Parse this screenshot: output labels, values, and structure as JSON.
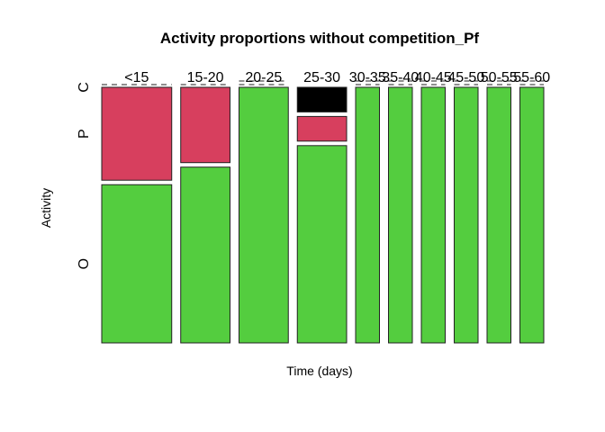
{
  "chart_data": {
    "type": "mosaic",
    "title": "Activity proportions without competition_Pf",
    "xlabel": "Time (days)",
    "ylabel": "Activity",
    "x_categories": [
      "<15",
      "15-20",
      "20-25",
      "25-30",
      "30-35",
      "35-40",
      "40-45",
      "45-50",
      "50-55",
      "55-60"
    ],
    "y_categories": [
      "O",
      "P",
      "C"
    ],
    "column_widths": [
      0.22,
      0.155,
      0.155,
      0.155,
      0.075,
      0.075,
      0.075,
      0.075,
      0.075,
      0.075
    ],
    "proportions": {
      "O": [
        0.63,
        0.7,
        1.0,
        0.8,
        1.0,
        1.0,
        1.0,
        1.0,
        1.0,
        1.0
      ],
      "P": [
        0.37,
        0.3,
        0.0,
        0.1,
        0.0,
        0.0,
        0.0,
        0.0,
        0.0,
        0.0
      ],
      "C": [
        0.0,
        0.0,
        0.0,
        0.1,
        0.0,
        0.0,
        0.0,
        0.0,
        0.0,
        0.0
      ]
    },
    "colors": {
      "O": "#54cd3f",
      "P": "#d73f5e",
      "C": "#000000"
    }
  }
}
